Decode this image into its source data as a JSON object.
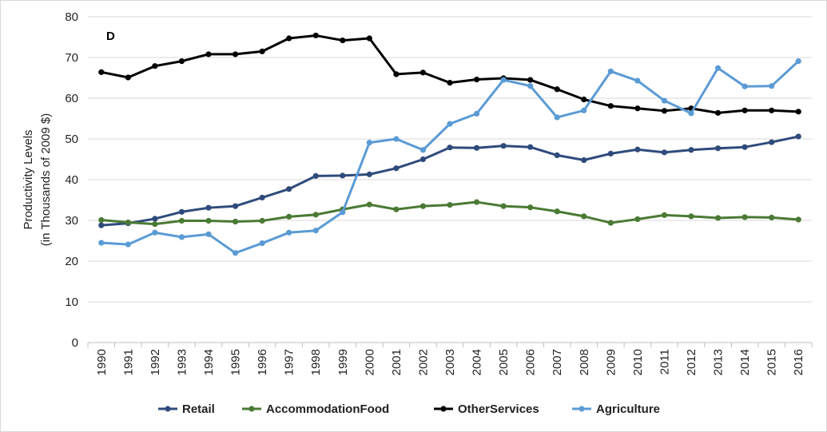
{
  "chart_data": {
    "type": "line",
    "panel_label": "D",
    "ylabel_line1": "Productivity Levels",
    "ylabel_line2": "(in Thousands of 2009 $)",
    "ylim": [
      0,
      80
    ],
    "yticks": [
      0,
      10,
      20,
      30,
      40,
      50,
      60,
      70,
      80
    ],
    "grid": true,
    "legend_position": "bottom",
    "x": [
      "1990",
      "1991",
      "1992",
      "1993",
      "1994",
      "1995",
      "1996",
      "1997",
      "1998",
      "1999",
      "2000",
      "2001",
      "2002",
      "2003",
      "2004",
      "2005",
      "2006",
      "2007",
      "2008",
      "2009",
      "2010",
      "2011",
      "2012",
      "2013",
      "2014",
      "2015",
      "2016"
    ],
    "series": [
      {
        "name": "Retail",
        "color": "#2f4b7c",
        "values": [
          28.8,
          29.3,
          30.4,
          32.1,
          33.1,
          33.5,
          35.6,
          37.7,
          40.9,
          41.0,
          41.3,
          42.8,
          45.0,
          47.9,
          47.8,
          48.3,
          48.0,
          46.0,
          44.8,
          46.4,
          47.4,
          46.7,
          47.3,
          47.7,
          48.0,
          49.2,
          50.6
        ]
      },
      {
        "name": "AccommodationFood",
        "color": "#4a7a34",
        "values": [
          30.1,
          29.5,
          29.1,
          29.9,
          29.9,
          29.7,
          29.9,
          30.9,
          31.4,
          32.7,
          33.9,
          32.7,
          33.5,
          33.8,
          34.5,
          33.5,
          33.2,
          32.2,
          31.0,
          29.4,
          30.3,
          31.3,
          31.0,
          30.6,
          30.8,
          30.7,
          30.2
        ]
      },
      {
        "name": "OtherServices",
        "color": "#000000",
        "values": [
          66.4,
          65.1,
          67.9,
          69.1,
          70.8,
          70.8,
          71.5,
          74.7,
          75.4,
          74.2,
          74.7,
          65.9,
          66.3,
          63.8,
          64.6,
          64.9,
          64.5,
          62.2,
          59.7,
          58.1,
          57.5,
          56.9,
          57.5,
          56.4,
          57.0,
          57.0,
          56.7
        ]
      },
      {
        "name": "Agriculture",
        "color": "#5b9bd5",
        "values": [
          24.5,
          24.1,
          27.0,
          25.9,
          26.6,
          22.0,
          24.4,
          27.0,
          27.5,
          32.0,
          49.1,
          50.0,
          47.3,
          53.7,
          56.2,
          64.5,
          63.0,
          55.3,
          57.0,
          66.6,
          64.3,
          59.4,
          56.3,
          67.4,
          62.9,
          63.0,
          69.1
        ]
      }
    ]
  }
}
